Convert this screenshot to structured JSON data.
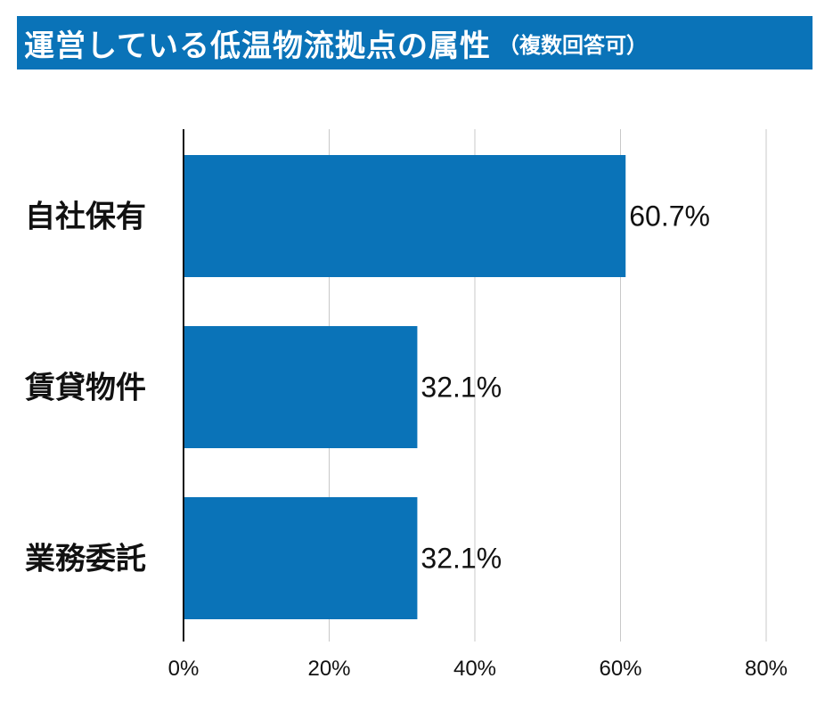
{
  "title": {
    "main": "運営している低温物流拠点の属性",
    "sub": "（複数回答可）",
    "background_color": "#0a73b8"
  },
  "chart_data": {
    "type": "bar",
    "orientation": "horizontal",
    "categories": [
      "自社保有",
      "賃貸物件",
      "業務委託"
    ],
    "values": [
      60.7,
      32.1,
      32.1
    ],
    "value_labels": [
      "60.7%",
      "32.1%",
      "32.1%"
    ],
    "xlim": [
      0,
      80
    ],
    "xticks": [
      0,
      20,
      40,
      60,
      80
    ],
    "xtick_labels": [
      "0%",
      "20%",
      "40%",
      "60%",
      "80%"
    ],
    "grid": true,
    "bar_color": "#0a73b8",
    "xlabel": "",
    "ylabel": ""
  }
}
